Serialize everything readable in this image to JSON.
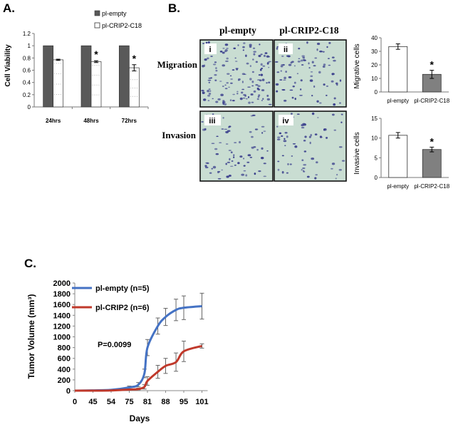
{
  "panel_labels": {
    "a": "A.",
    "b": "B.",
    "c": "C."
  },
  "micrograph": {
    "col_headers": [
      "pl-empty",
      "pl-CRIP2-C18"
    ],
    "row_labels": [
      "Migration",
      "Invasion"
    ],
    "tile_labels": [
      "i",
      "ii",
      "iii",
      "iv"
    ],
    "dot_color": "#3a3f8c",
    "bg_color": "#c9ddd2"
  },
  "chart_data": [
    {
      "id": "A",
      "type": "bar",
      "title": "",
      "xlabel": "",
      "ylabel": "Cell Viability",
      "categories": [
        "24hrs",
        "48hrs",
        "72hrs"
      ],
      "ylim": [
        0,
        1.2
      ],
      "yticks": [
        "0",
        "0.2",
        "0.4",
        "0.6",
        "0.8",
        "1",
        "1.2"
      ],
      "legend": "top-right",
      "series": [
        {
          "name": "pl-empty",
          "values": [
            1.0,
            1.0,
            1.0
          ],
          "errors": [
            0,
            0,
            0
          ],
          "color": "#595959"
        },
        {
          "name": "pl-CRIP2-C18",
          "values": [
            0.77,
            0.74,
            0.64
          ],
          "errors": [
            0.01,
            0.015,
            0.05
          ],
          "color": "#ffffff"
        }
      ],
      "significance": [
        "",
        "*",
        "*"
      ]
    },
    {
      "id": "B-migration",
      "type": "bar",
      "ylabel": "Migrative cells",
      "categories": [
        "pl-empty",
        "pl-CRIP2-C18"
      ],
      "values": [
        33.5,
        13.0
      ],
      "errors": [
        2.0,
        3.0
      ],
      "colors": [
        "#ffffff",
        "#808080"
      ],
      "ylim": [
        0,
        40
      ],
      "yticks": [
        "0",
        "10",
        "20",
        "30",
        "40"
      ],
      "significance": [
        "",
        "*"
      ]
    },
    {
      "id": "B-invasion",
      "type": "bar",
      "ylabel": "Invasive cells",
      "categories": [
        "pl-empty",
        "pl-CRIP2-C18"
      ],
      "values": [
        10.7,
        7.1
      ],
      "errors": [
        0.7,
        0.6
      ],
      "colors": [
        "#ffffff",
        "#808080"
      ],
      "ylim": [
        0,
        15
      ],
      "yticks": [
        "0",
        "5",
        "10",
        "15"
      ],
      "significance": [
        "",
        "*"
      ]
    },
    {
      "id": "C",
      "type": "line",
      "xlabel": "Days",
      "ylabel": "Tumor Volume (mm³)",
      "x": [
        0,
        45,
        54,
        75,
        78,
        80,
        81,
        85,
        88,
        92,
        95,
        101
      ],
      "xticks": [
        "0",
        "45",
        "54",
        "75",
        "81",
        "88",
        "95",
        "101"
      ],
      "ylim": [
        0,
        2000
      ],
      "yticks": [
        "0",
        "200",
        "400",
        "600",
        "800",
        "1000",
        "1200",
        "1400",
        "1600",
        "1800",
        "2000"
      ],
      "annotation": "P=0.0099",
      "legend": "top-left",
      "series": [
        {
          "name": "pl-empty (n=5)",
          "color": "#4472c4",
          "values": [
            0,
            5,
            15,
            60,
            110,
            320,
            800,
            1200,
            1370,
            1500,
            1540,
            1570
          ],
          "errors": [
            0,
            0,
            10,
            25,
            40,
            80,
            150,
            150,
            160,
            200,
            220,
            240
          ]
        },
        {
          "name": "pl-CRIP2 (n=6)",
          "color": "#c0392b",
          "values": [
            0,
            0,
            3,
            20,
            30,
            70,
            180,
            350,
            460,
            530,
            730,
            830
          ],
          "errors": [
            0,
            0,
            0,
            5,
            15,
            40,
            80,
            120,
            140,
            170,
            190,
            40
          ]
        }
      ]
    }
  ]
}
